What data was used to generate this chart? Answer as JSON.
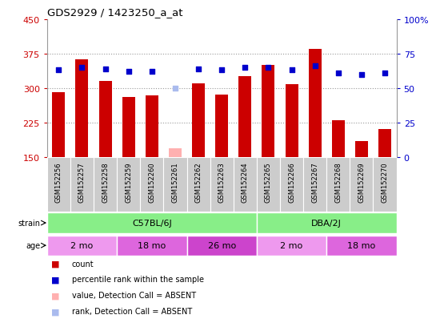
{
  "title": "GDS2929 / 1423250_a_at",
  "samples": [
    "GSM152256",
    "GSM152257",
    "GSM152258",
    "GSM152259",
    "GSM152260",
    "GSM152261",
    "GSM152262",
    "GSM152263",
    "GSM152264",
    "GSM152265",
    "GSM152266",
    "GSM152267",
    "GSM152268",
    "GSM152269",
    "GSM152270"
  ],
  "counts": [
    290,
    362,
    315,
    280,
    283,
    null,
    310,
    285,
    325,
    350,
    308,
    385,
    230,
    185,
    210
  ],
  "absent_counts": [
    null,
    null,
    null,
    null,
    null,
    168,
    null,
    null,
    null,
    null,
    null,
    null,
    null,
    null,
    null
  ],
  "percentile_ranks": [
    63,
    65,
    64,
    62,
    62,
    null,
    64,
    63,
    65,
    65,
    63,
    66,
    61,
    60,
    61
  ],
  "absent_ranks": [
    null,
    null,
    null,
    null,
    null,
    50,
    null,
    null,
    null,
    null,
    null,
    null,
    null,
    null,
    null
  ],
  "ylim_left": [
    150,
    450
  ],
  "ylim_right": [
    0,
    100
  ],
  "yticks_left": [
    150,
    225,
    300,
    375,
    450
  ],
  "yticks_right": [
    0,
    25,
    50,
    75,
    100
  ],
  "strain_labels": [
    {
      "label": "C57BL/6J",
      "start": 0,
      "end": 9
    },
    {
      "label": "DBA/2J",
      "start": 9,
      "end": 15
    }
  ],
  "age_labels": [
    {
      "label": "2 mo",
      "start": 0,
      "end": 3
    },
    {
      "label": "18 mo",
      "start": 3,
      "end": 6
    },
    {
      "label": "26 mo",
      "start": 6,
      "end": 9
    },
    {
      "label": "2 mo",
      "start": 9,
      "end": 12
    },
    {
      "label": "18 mo",
      "start": 12,
      "end": 15
    }
  ],
  "bar_color": "#cc0000",
  "absent_bar_color": "#ffb0b0",
  "rank_color": "#0000cc",
  "absent_rank_color": "#aabbee",
  "strain_color": "#88ee88",
  "age_color_light": "#ee99ee",
  "age_color_mid": "#dd66dd",
  "age_color_dark": "#cc44cc",
  "age_colors": [
    "#ee99ee",
    "#dd66dd",
    "#cc44cc",
    "#ee99ee",
    "#dd66dd"
  ],
  "sample_box_color": "#cccccc",
  "bg_color": "#ffffff",
  "grid_color": "#999999",
  "tick_label_color_left": "#cc0000",
  "tick_label_color_right": "#0000cc",
  "legend_items": [
    {
      "color": "#cc0000",
      "label": "count"
    },
    {
      "color": "#0000cc",
      "label": "percentile rank within the sample"
    },
    {
      "color": "#ffb0b0",
      "label": "value, Detection Call = ABSENT"
    },
    {
      "color": "#aabbee",
      "label": "rank, Detection Call = ABSENT"
    }
  ]
}
